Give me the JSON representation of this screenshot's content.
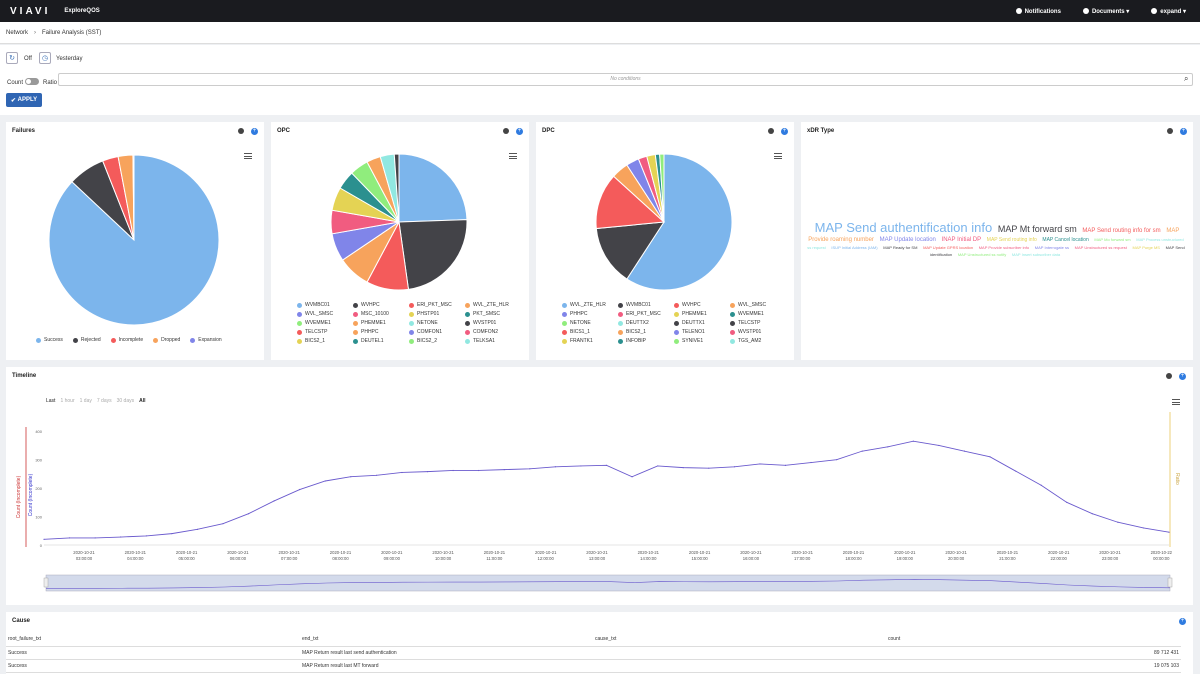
{
  "topbar": {
    "logo": "VIAVI",
    "app_name": "ExploreQOS",
    "notifications": "Notifications",
    "documents": "Documents",
    "user": "expand"
  },
  "breadcrumb": {
    "root": "Network",
    "current": "Failure Analysis (SST)"
  },
  "controls": {
    "refresh_state": "Off",
    "date_range": "Yesterday",
    "count_label": "Count",
    "ratio_label": "Ratio",
    "conditions_placeholder": "No conditions",
    "apply_label": "APPLY"
  },
  "failures": {
    "title": "Failures",
    "legend": [
      {
        "label": "Success",
        "color": "#7cb5ec"
      },
      {
        "label": "Rejected",
        "color": "#434348"
      },
      {
        "label": "Incomplete",
        "color": "#f45b5b"
      },
      {
        "label": "Dropped",
        "color": "#f7a35c"
      },
      {
        "label": "Expansion",
        "color": "#8085e9"
      }
    ]
  },
  "opc": {
    "title": "OPC",
    "legend": [
      {
        "label": "WVMBC01",
        "color": "#7cb5ec"
      },
      {
        "label": "WVHPC",
        "color": "#434348"
      },
      {
        "label": "ERI_PKT_MSC",
        "color": "#f45b5b"
      },
      {
        "label": "WVL_ZTE_HLR",
        "color": "#f7a35c"
      },
      {
        "label": "WVL_SMSC",
        "color": "#8085e9"
      },
      {
        "label": "MSC_10100",
        "color": "#f15c80"
      },
      {
        "label": "PHSTP01",
        "color": "#e4d354"
      },
      {
        "label": "PKT_SMSC",
        "color": "#2b908f"
      },
      {
        "label": "WVEMME1",
        "color": "#90ed7d"
      },
      {
        "label": "PHEMME1",
        "color": "#f7a35c"
      },
      {
        "label": "NETONE",
        "color": "#91e8e1"
      },
      {
        "label": "WVSTP01",
        "color": "#434348"
      },
      {
        "label": "TELCSTP",
        "color": "#f45b5b"
      },
      {
        "label": "PHHPC",
        "color": "#f7a35c"
      },
      {
        "label": "COMFON1",
        "color": "#8085e9"
      },
      {
        "label": "COMFON2",
        "color": "#f15c80"
      },
      {
        "label": "BICS2_1",
        "color": "#e4d354"
      },
      {
        "label": "DEUTEL1",
        "color": "#2b908f"
      },
      {
        "label": "BICS2_2",
        "color": "#90ed7d"
      },
      {
        "label": "TELKSA1",
        "color": "#91e8e1"
      }
    ]
  },
  "dpc": {
    "title": "DPC",
    "legend": [
      {
        "label": "WVL_ZTE_HLR",
        "color": "#7cb5ec"
      },
      {
        "label": "WVMBC01",
        "color": "#434348"
      },
      {
        "label": "WVHPC",
        "color": "#f45b5b"
      },
      {
        "label": "WVL_SMSC",
        "color": "#f7a35c"
      },
      {
        "label": "PHHPC",
        "color": "#8085e9"
      },
      {
        "label": "ERI_PKT_MSC",
        "color": "#f15c80"
      },
      {
        "label": "PHEMME1",
        "color": "#e4d354"
      },
      {
        "label": "WVEMME1",
        "color": "#2b908f"
      },
      {
        "label": "NETONE",
        "color": "#90ed7d"
      },
      {
        "label": "DEUTTX2",
        "color": "#91e8e1"
      },
      {
        "label": "DEUTTX1",
        "color": "#434348"
      },
      {
        "label": "TELCSTP",
        "color": "#434348"
      },
      {
        "label": "BICS1_1",
        "color": "#f45b5b"
      },
      {
        "label": "BICS2_1",
        "color": "#f7a35c"
      },
      {
        "label": "TELENO1",
        "color": "#8085e9"
      },
      {
        "label": "WVSTP01",
        "color": "#f15c80"
      },
      {
        "label": "FRANTK1",
        "color": "#e4d354"
      },
      {
        "label": "INFOBIP",
        "color": "#2b908f"
      },
      {
        "label": "SYNIVE1",
        "color": "#90ed7d"
      },
      {
        "label": "TGS_AM2",
        "color": "#91e8e1"
      }
    ]
  },
  "xdr": {
    "title": "xDR Type",
    "words": [
      {
        "text": "MAP Send authentification info",
        "size": 13,
        "color": "#7cb5ec"
      },
      {
        "text": "MAP Mt forward sm",
        "size": 9,
        "color": "#434348"
      },
      {
        "text": "MAP Send routing info for sm",
        "size": 6,
        "color": "#f45b5b"
      },
      {
        "text": "MAP Provide roaming number",
        "size": 6,
        "color": "#f7a35c"
      },
      {
        "text": "MAP Update location",
        "size": 6,
        "color": "#8085e9"
      },
      {
        "text": "INAP Initial DP",
        "size": 6,
        "color": "#f15c80"
      },
      {
        "text": "MAP Send routing info",
        "size": 5,
        "color": "#e4d354"
      },
      {
        "text": "MAP Cancel location",
        "size": 5,
        "color": "#2b908f"
      },
      {
        "text": "MAP Mo forward sm",
        "size": 4,
        "color": "#90ed7d"
      },
      {
        "text": "MAP Process unstructured ss request",
        "size": 4,
        "color": "#91e8e1"
      },
      {
        "text": "ISUP Initial Address (IAM)",
        "size": 4,
        "color": "#7cb5ec"
      },
      {
        "text": "MAP Ready for SM",
        "size": 4,
        "color": "#434348"
      },
      {
        "text": "MAP Update GPRS location",
        "size": 4,
        "color": "#f45b5b"
      },
      {
        "text": "MAP Provide subscriber info",
        "size": 4,
        "color": "#f15c80"
      },
      {
        "text": "MAP Interrogate ss",
        "size": 4,
        "color": "#8085e9"
      },
      {
        "text": "MAP Unstructured ss request",
        "size": 4,
        "color": "#f15c80"
      },
      {
        "text": "MAP Purge MS",
        "size": 4,
        "color": "#e4d354"
      },
      {
        "text": "MAP Send identification",
        "size": 4,
        "color": "#434348"
      },
      {
        "text": "MAP Unstructured ss notify",
        "size": 4,
        "color": "#90ed7d"
      },
      {
        "text": "MAP Insert subscriber data",
        "size": 4,
        "color": "#91e8e1"
      }
    ]
  },
  "timeline": {
    "title": "Timeline",
    "ranges": [
      "Last",
      "1 hour",
      "1 day",
      "7 days",
      "30 days",
      "All"
    ],
    "y_left_label": "Count (Incomplete)",
    "y_left_label2": "Count (Incomplete)",
    "y_right_label": "Ratio",
    "y_ticks": [
      "400",
      "300",
      "200",
      "100",
      "0"
    ],
    "x_ticks": [
      [
        "2020-10-21",
        "03:00:00"
      ],
      [
        "2020-10-21",
        "04:00:00"
      ],
      [
        "2020-10-21",
        "05:00:00"
      ],
      [
        "2020-10-21",
        "06:00:00"
      ],
      [
        "2020-10-21",
        "07:00:00"
      ],
      [
        "2020-10-21",
        "08:00:00"
      ],
      [
        "2020-10-21",
        "09:00:00"
      ],
      [
        "2020-10-21",
        "10:00:00"
      ],
      [
        "2020-10-21",
        "11:00:00"
      ],
      [
        "2020-10-21",
        "12:00:00"
      ],
      [
        "2020-10-21",
        "13:00:00"
      ],
      [
        "2020-10-21",
        "14:00:00"
      ],
      [
        "2020-10-21",
        "15:00:00"
      ],
      [
        "2020-10-21",
        "16:00:00"
      ],
      [
        "2020-10-21",
        "17:00:00"
      ],
      [
        "2020-10-21",
        "18:00:00"
      ],
      [
        "2020-10-21",
        "19:00:00"
      ],
      [
        "2020-10-21",
        "20:00:00"
      ],
      [
        "2020-10-21",
        "21:00:00"
      ],
      [
        "2020-10-21",
        "22:00:00"
      ],
      [
        "2020-10-21",
        "23:00:00"
      ],
      [
        "2020-10-22",
        "00:00:00"
      ]
    ]
  },
  "cause": {
    "title": "Cause",
    "columns": [
      "root_failure_txt",
      "end_txt",
      "cause_txt",
      "count"
    ],
    "rows": [
      [
        "Success",
        "MAP Return result last send authentication",
        "",
        "89 712 431"
      ],
      [
        "Success",
        "MAP Return result last MT forward",
        "",
        "19 075 103"
      ]
    ]
  },
  "chart_data": [
    {
      "type": "pie",
      "title": "Failures",
      "categories": [
        "Success",
        "Rejected",
        "Incomplete",
        "Dropped",
        "Expansion"
      ],
      "values": [
        87,
        7,
        3,
        2.8,
        0.2
      ]
    },
    {
      "type": "pie",
      "title": "OPC",
      "categories": [
        "WVMBC01",
        "WVHPC",
        "ERI_PKT_MSC",
        "WVL_ZTE_HLR",
        "WVL_SMSC",
        "MSC_10100",
        "PHSTP01",
        "PKT_SMSC",
        "WVEMME1",
        "PHEMME1",
        "NETONE",
        "WVSTP01"
      ],
      "values": [
        22,
        21,
        9,
        7,
        6,
        5,
        5,
        4,
        4,
        3,
        3,
        1
      ]
    },
    {
      "type": "pie",
      "title": "DPC",
      "categories": [
        "WVL_ZTE_HLR",
        "WVMBC01",
        "WVHPC",
        "WVL_SMSC",
        "PHHPC",
        "ERI_PKT_MSC",
        "PHEMME1",
        "WVEMME1",
        "NETONE"
      ],
      "values": [
        58,
        14,
        13,
        4,
        3,
        2,
        2,
        1,
        1
      ]
    },
    {
      "type": "line",
      "title": "Timeline",
      "x": [
        "02:00",
        "02:30",
        "03:00",
        "03:30",
        "04:00",
        "04:30",
        "05:00",
        "05:30",
        "06:00",
        "06:30",
        "07:00",
        "07:30",
        "08:00",
        "08:30",
        "09:00",
        "09:30",
        "10:00",
        "10:30",
        "11:00",
        "11:30",
        "12:00",
        "12:30",
        "13:00",
        "13:30",
        "14:00",
        "14:30",
        "15:00",
        "15:30",
        "16:00",
        "16:30",
        "17:00",
        "17:30",
        "18:00",
        "18:30",
        "19:00",
        "19:30",
        "20:00",
        "20:30",
        "21:00",
        "21:30",
        "22:00",
        "22:30",
        "23:00",
        "23:30",
        "00:00"
      ],
      "values": [
        20,
        25,
        25,
        28,
        32,
        40,
        55,
        75,
        110,
        155,
        195,
        225,
        240,
        245,
        255,
        258,
        262,
        262,
        265,
        268,
        275,
        278,
        280,
        240,
        278,
        272,
        270,
        275,
        285,
        280,
        290,
        300,
        330,
        345,
        365,
        350,
        330,
        310,
        260,
        210,
        150,
        110,
        80,
        60,
        45
      ],
      "ylim": [
        0,
        450
      ]
    }
  ]
}
